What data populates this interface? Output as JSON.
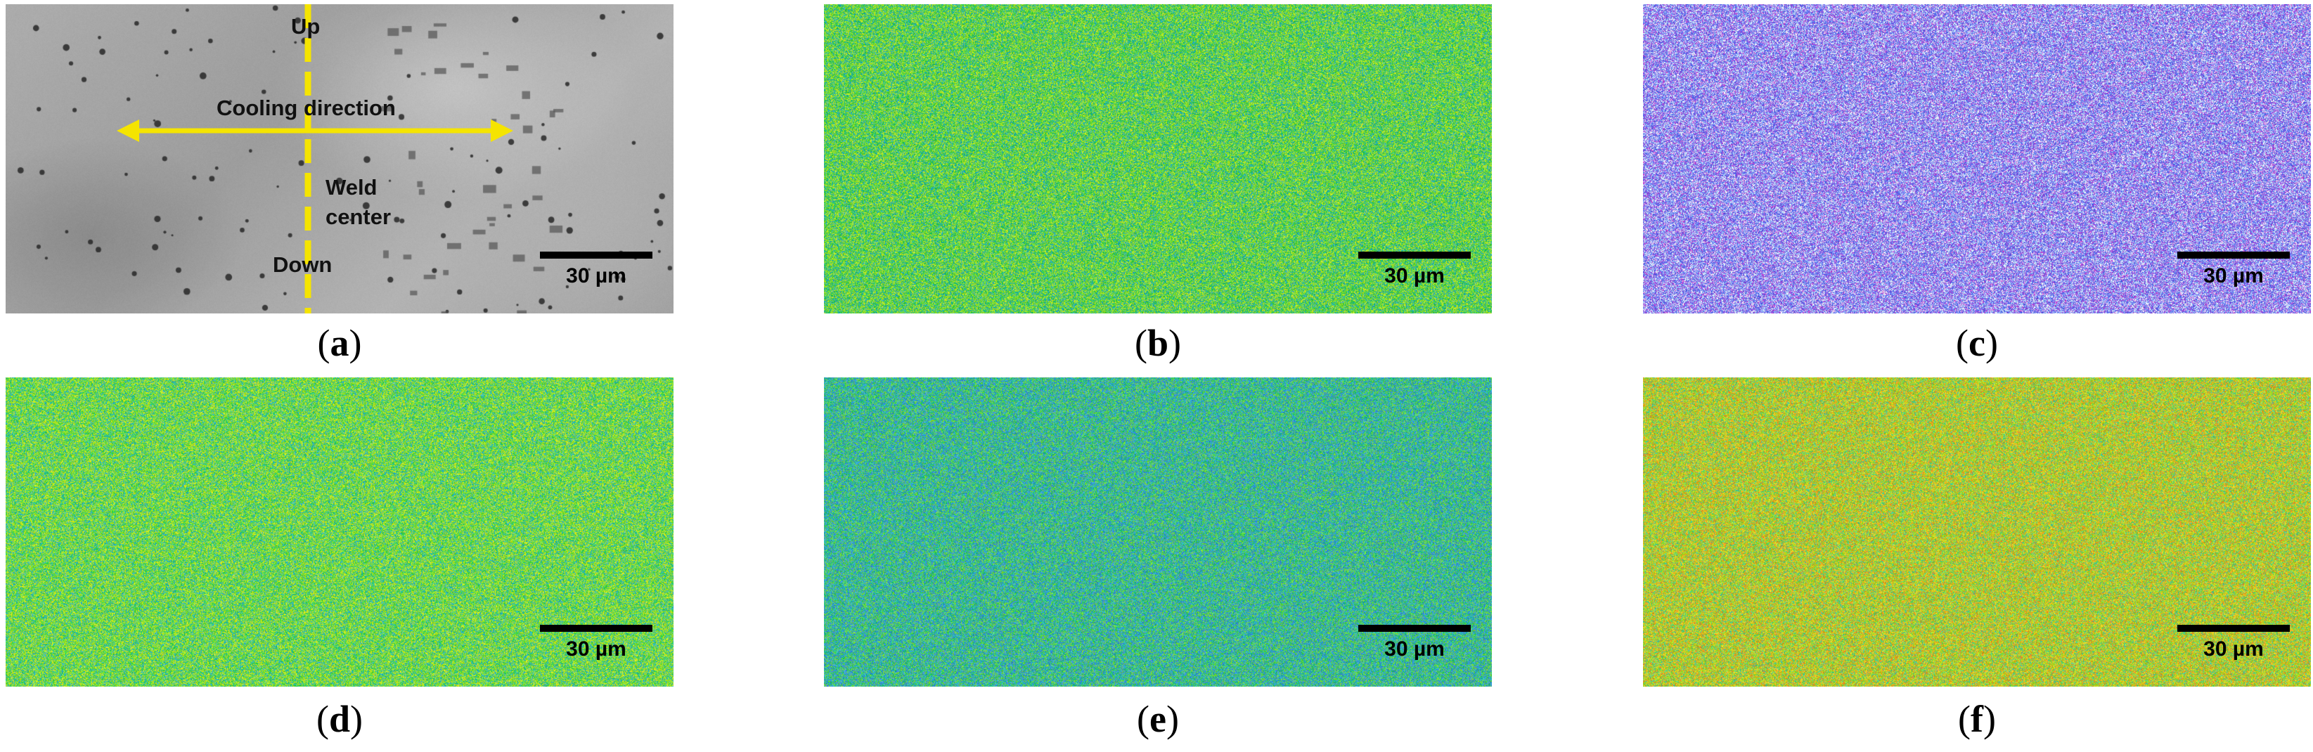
{
  "panels": [
    {
      "id": "a",
      "caption_letter": "a",
      "kind": "sem",
      "scale_label": "30 µm",
      "annotations": {
        "up": "Up",
        "down": "Down",
        "cooling": "Cooling direction",
        "weld_line1": "Weld",
        "weld_line2": "center"
      },
      "arrow_color": "#f5e400"
    },
    {
      "id": "b",
      "caption_letter": "b",
      "kind": "map",
      "scale_label": "30 µm",
      "palette": [
        "#22c84a",
        "#7bdc2a",
        "#c8e61e",
        "#1ea8c8"
      ]
    },
    {
      "id": "c",
      "caption_letter": "c",
      "kind": "map",
      "scale_label": "30 µm",
      "palette": [
        "#4a5ae6",
        "#6a7cf0",
        "#a0c8f8",
        "#ffffff",
        "#c040d0"
      ]
    },
    {
      "id": "d",
      "caption_letter": "d",
      "kind": "map",
      "scale_label": "30 µm",
      "palette": [
        "#2ed448",
        "#8ee028",
        "#d6e61a",
        "#26b0d0"
      ]
    },
    {
      "id": "e",
      "caption_letter": "e",
      "kind": "map",
      "scale_label": "30 µm",
      "palette": [
        "#1ec860",
        "#2ab4d0",
        "#3a84e0",
        "#7edc30"
      ]
    },
    {
      "id": "f",
      "caption_letter": "f",
      "kind": "map",
      "scale_label": "30 µm",
      "palette": [
        "#b8e01e",
        "#7ed828",
        "#f0d020",
        "#f08a20",
        "#3cc8a0"
      ]
    }
  ]
}
